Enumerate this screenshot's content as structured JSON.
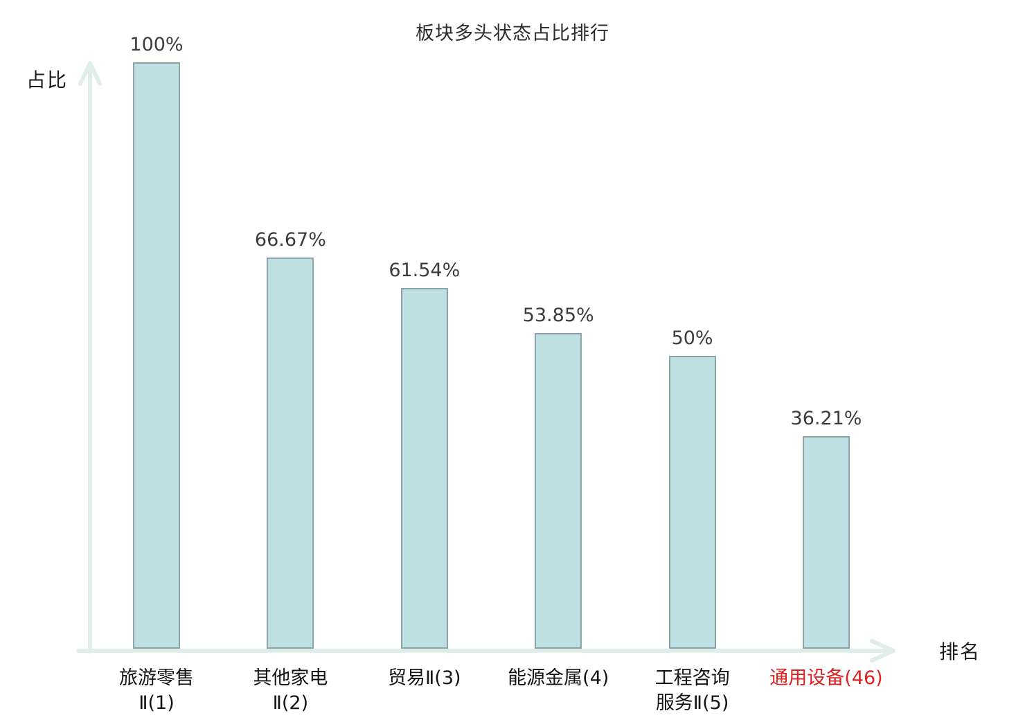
{
  "chart_data": {
    "type": "bar",
    "title": "板块多头状态占比排行",
    "xlabel": "排名",
    "ylabel": "占比",
    "categories": [
      "旅游零售\nⅡ(1)",
      "其他家电\nⅡ(2)",
      "贸易Ⅱ(3)",
      "能源金属(4)",
      "工程咨询\n服务Ⅱ(5)",
      "通用设备(46)"
    ],
    "values": [
      100,
      66.67,
      61.54,
      53.85,
      50,
      36.21
    ],
    "value_labels": [
      "100%",
      "66.67%",
      "61.54%",
      "53.85%",
      "50%",
      "36.21%"
    ],
    "highlight_index": 5,
    "ylim": [
      0,
      100
    ],
    "grid": false,
    "legend": "none",
    "colors": {
      "bar_fill": "#bfe0e3",
      "bar_border": "#8ca3a7",
      "axis": "#dfeeea",
      "value_text": "#3c3c3c",
      "category_text": "#141414",
      "highlight_text": "#e01f1f",
      "background": "#ffffff"
    }
  }
}
